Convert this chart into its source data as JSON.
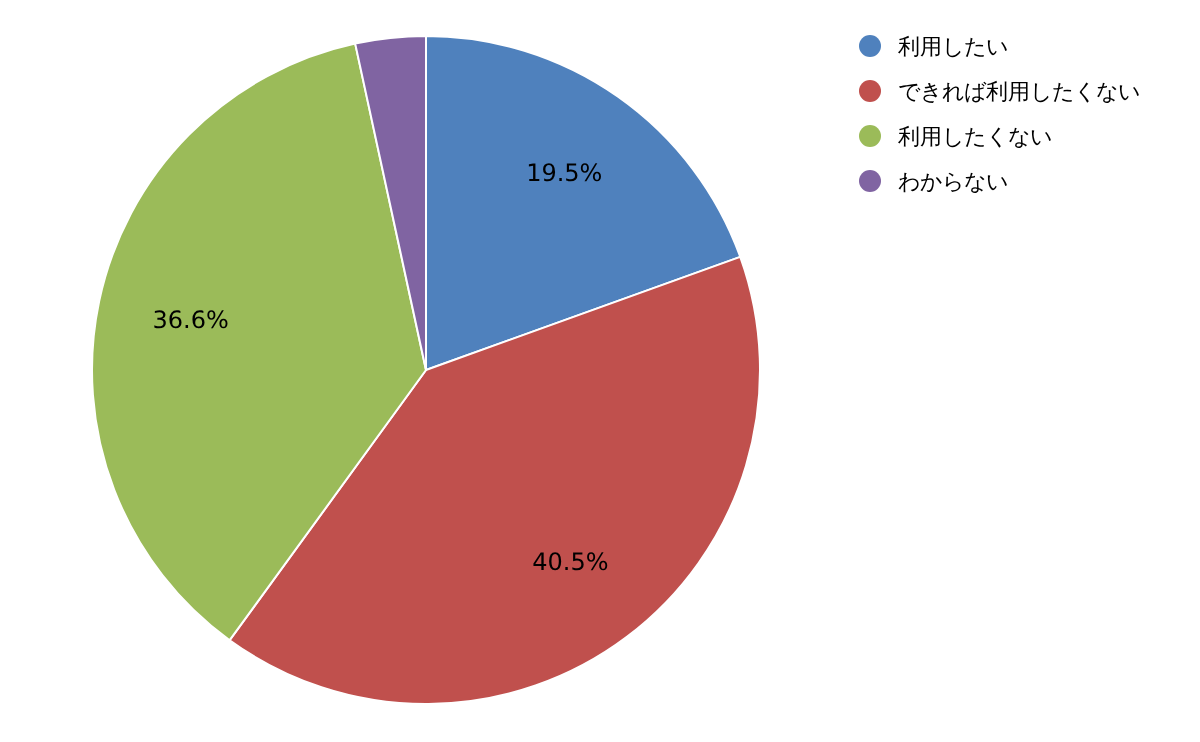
{
  "chart_data": {
    "type": "pie",
    "categories": [
      "利用したい",
      "できれば利用したくない",
      "利用したくない",
      "わからない"
    ],
    "values": [
      19.5,
      40.5,
      36.6,
      3.4
    ],
    "colors": [
      "#4f81bd",
      "#c0504d",
      "#9bbb59",
      "#8064a2"
    ],
    "value_labels": [
      "19.5%",
      "40.5%",
      "36.6%",
      null
    ],
    "legend": "top right"
  }
}
